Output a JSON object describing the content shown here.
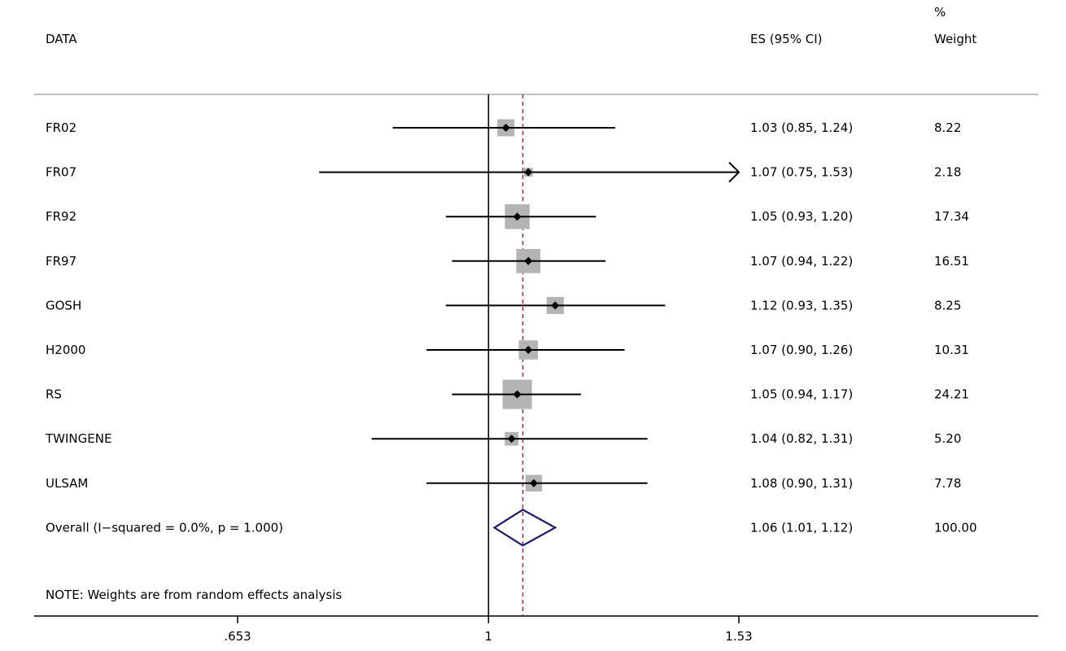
{
  "header": {
    "study_col": "DATA",
    "es_col": "ES (95% CI)",
    "weight_col_line1": "%",
    "weight_col_line2": "Weight"
  },
  "note": "NOTE: Weights are from random effects analysis",
  "chart_data": {
    "type": "forest",
    "x_scale": "log",
    "xlim": [
      0.653,
      1.53
    ],
    "null_line": 1,
    "x_ticks": [
      {
        "value": 0.653,
        "label": ".653"
      },
      {
        "value": 1,
        "label": "1"
      },
      {
        "value": 1.53,
        "label": "1.53"
      }
    ],
    "studies": [
      {
        "name": "FR02",
        "es": 1.03,
        "lo": 0.85,
        "hi": 1.24,
        "es_text": "1.03 (0.85, 1.24)",
        "weight": 8.22,
        "weight_text": "8.22"
      },
      {
        "name": "FR07",
        "es": 1.07,
        "lo": 0.75,
        "hi": 1.53,
        "es_text": "1.07 (0.75, 1.53)",
        "weight": 2.18,
        "weight_text": "2.18",
        "arrow_right": true
      },
      {
        "name": "FR92",
        "es": 1.05,
        "lo": 0.93,
        "hi": 1.2,
        "es_text": "1.05 (0.93, 1.20)",
        "weight": 17.34,
        "weight_text": "17.34"
      },
      {
        "name": "FR97",
        "es": 1.07,
        "lo": 0.94,
        "hi": 1.22,
        "es_text": "1.07 (0.94, 1.22)",
        "weight": 16.51,
        "weight_text": "16.51"
      },
      {
        "name": "GOSH",
        "es": 1.12,
        "lo": 0.93,
        "hi": 1.35,
        "es_text": "1.12 (0.93, 1.35)",
        "weight": 8.25,
        "weight_text": "8.25"
      },
      {
        "name": "H2000",
        "es": 1.07,
        "lo": 0.9,
        "hi": 1.26,
        "es_text": "1.07 (0.90, 1.26)",
        "weight": 10.31,
        "weight_text": "10.31"
      },
      {
        "name": "RS",
        "es": 1.05,
        "lo": 0.94,
        "hi": 1.17,
        "es_text": "1.05 (0.94, 1.17)",
        "weight": 24.21,
        "weight_text": "24.21"
      },
      {
        "name": "TWINGENE",
        "es": 1.04,
        "lo": 0.82,
        "hi": 1.31,
        "es_text": "1.04 (0.82, 1.31)",
        "weight": 5.2,
        "weight_text": "5.20"
      },
      {
        "name": "ULSAM",
        "es": 1.08,
        "lo": 0.9,
        "hi": 1.31,
        "es_text": "1.08 (0.90, 1.31)",
        "weight": 7.78,
        "weight_text": "7.78"
      }
    ],
    "overall": {
      "label": "Overall  (I−squared = 0.0%, p = 1.000)",
      "es": 1.06,
      "lo": 1.01,
      "hi": 1.12,
      "es_text": "1.06 (1.01, 1.12)",
      "weight_text": "100.00"
    },
    "colors": {
      "box_fill": "#b4b4b4",
      "point": "#000000",
      "diamond_stroke": "#1a1a6e",
      "overall_line": "#8b2a3a",
      "axis": "#000000",
      "rule": "#999999"
    }
  }
}
